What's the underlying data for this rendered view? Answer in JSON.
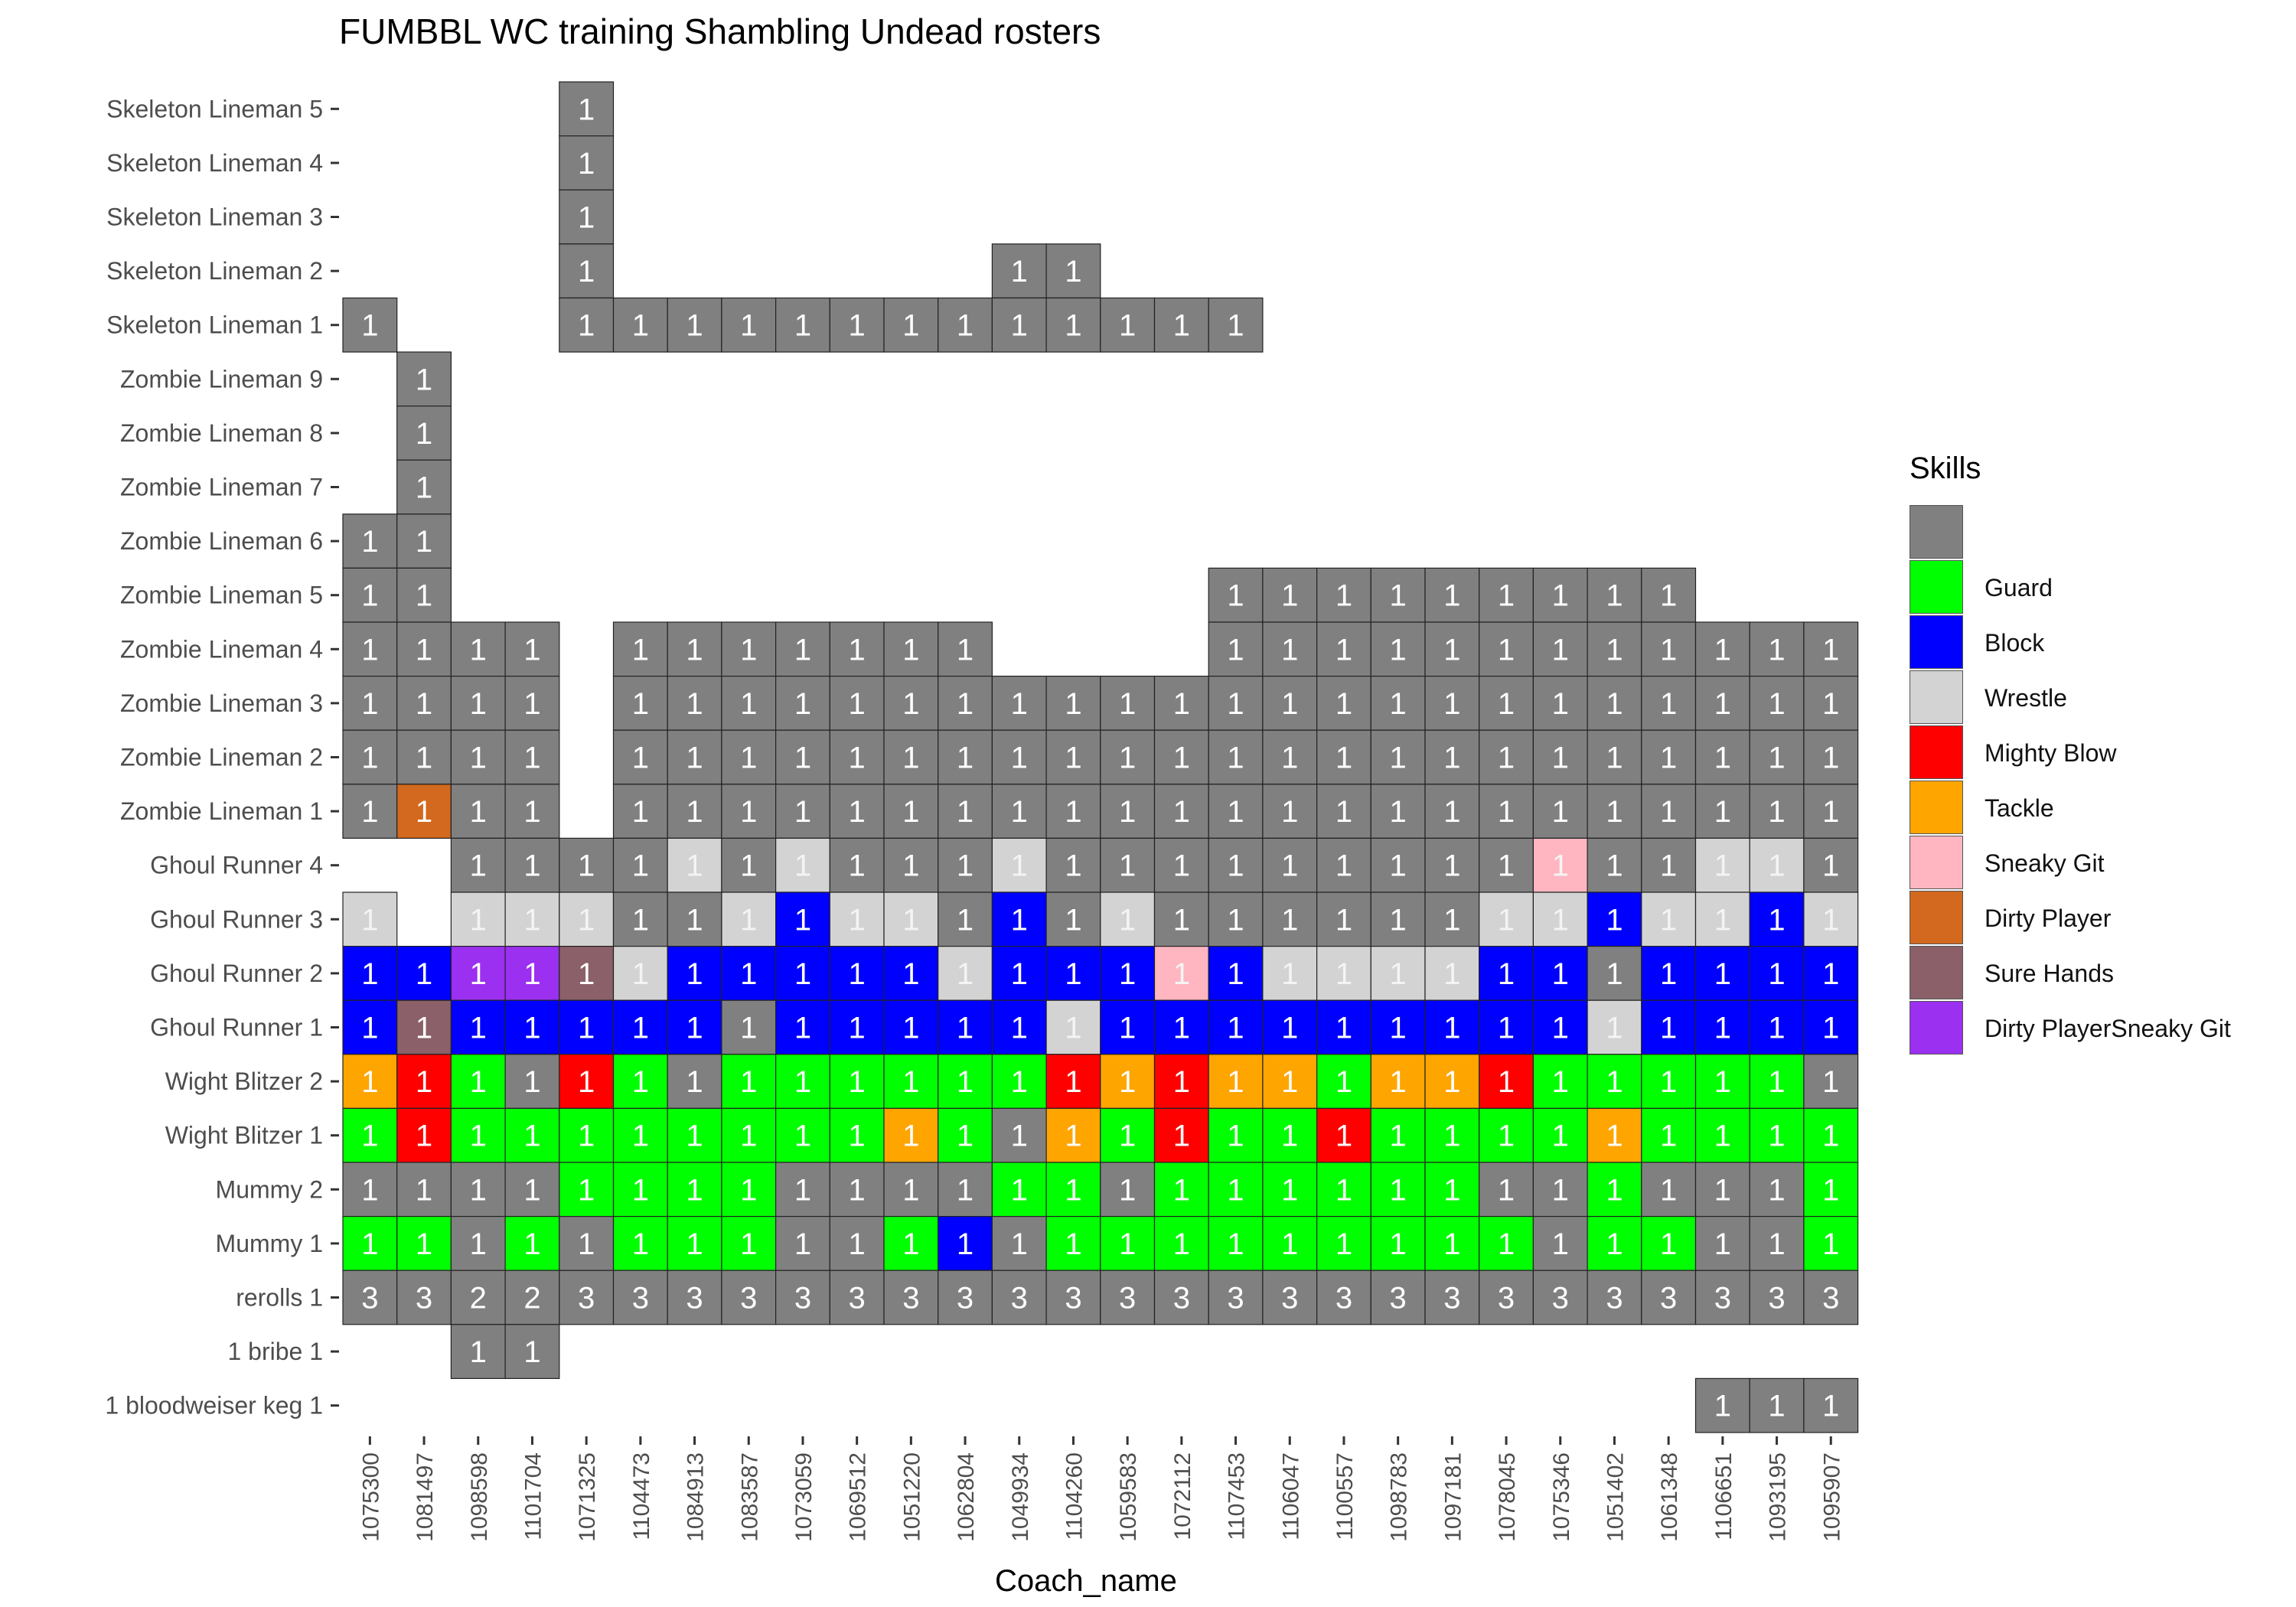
{
  "chart_data": {
    "type": "heatmap",
    "title": "FUMBBL WC training Shambling Undead rosters",
    "xlabel": "Coach_name",
    "ylabel": "",
    "legend_title": "Skills",
    "legend_position": "right",
    "grid": false,
    "x_categories": [
      "1075300",
      "1081497",
      "1098598",
      "1101704",
      "1071325",
      "1104473",
      "1084913",
      "1083587",
      "1073059",
      "1069512",
      "1051220",
      "1062804",
      "1049934",
      "1104260",
      "1059583",
      "1072112",
      "1107453",
      "1106047",
      "1100557",
      "1098783",
      "1097181",
      "1078045",
      "1075346",
      "1051402",
      "1061348",
      "1106651",
      "1093195",
      "1095907"
    ],
    "y_categories": [
      "Skeleton Lineman 5",
      "Skeleton Lineman 4",
      "Skeleton Lineman 3",
      "Skeleton Lineman 2",
      "Skeleton Lineman 1",
      "Zombie Lineman 9",
      "Zombie Lineman 8",
      "Zombie Lineman 7",
      "Zombie Lineman 6",
      "Zombie Lineman 5",
      "Zombie Lineman 4",
      "Zombie Lineman 3",
      "Zombie Lineman 2",
      "Zombie Lineman 1",
      "Ghoul Runner 4",
      "Ghoul Runner 3",
      "Ghoul Runner 2",
      "Ghoul Runner 1",
      "Wight Blitzer 2",
      "Wight Blitzer 1",
      "Mummy 2",
      "Mummy 1",
      "rerolls 1",
      "1 bribe 1",
      "1 bloodweiser keg 1"
    ],
    "legend": [
      {
        "code": "n",
        "name": "",
        "color": "#808080"
      },
      {
        "code": "G",
        "name": "Guard",
        "color": "#00FF00"
      },
      {
        "code": "B",
        "name": "Block",
        "color": "#0000FF"
      },
      {
        "code": "W",
        "name": "Wrestle",
        "color": "#D3D3D3"
      },
      {
        "code": "M",
        "name": "Mighty Blow",
        "color": "#FF0000"
      },
      {
        "code": "T",
        "name": "Tackle",
        "color": "#FFA500"
      },
      {
        "code": "S",
        "name": "Sneaky Git",
        "color": "#FFB6C1"
      },
      {
        "code": "D",
        "name": "Dirty Player",
        "color": "#D2691E"
      },
      {
        "code": "H",
        "name": "Sure Hands",
        "color": "#8B6068"
      },
      {
        "code": "P",
        "name": "Dirty PlayerSneaky Git",
        "color": "#9B30F0"
      }
    ],
    "cell_note": "rows use one char per coach column: '.' = empty, otherwise skill code; value shown is 1 unless row is rerolls",
    "rows": [
      "....n.......................",
      "....n.......................",
      "....n.......................",
      "....n.......nn..............",
      "n...nnnnnnnnnnnnn...........",
      ".n..........................",
      ".n..........................",
      ".n..........................",
      "nn..........................",
      "nn..............nnnnnnnnn...",
      "nnnn.nnnnnnn....nnnnnnnnnnnn",
      "nnnn.nnnnnnnnnnnnnnnnnnnnnnn",
      "nnnn.nnnnnnnnnnnnnnnnnnnnnnn",
      "nDnn.nnnnnnnnnnnnnnnnnnnnnnn",
      "..nnnnWnWnnnWnnnnnnnnnSnnWWn",
      "W.WWWnnWBWWnBnWnnnnnnWWBWWBW",
      "BBPPHWBBBBBWBBBSBWWWWBBnBBBB",
      "BHBBBBBnBBBBBWBBBBBBBBBWBBBB",
      "TMGnMGnGGGGGGMTMTTGTTMGGGGGn",
      "GMGGGGGGGGTGnTGMGGMGGGGTGGGG",
      "nnnnGGGGnnnnGGnGGGGGGnnGnnnG",
      "GGnGnGGGnnGBnGGGGGGGGGnGGnnG",
      "nnnnnnnnnnnnnnnnnnnnnnnnnnnn",
      "..nn........................",
      ".........................nnn"
    ],
    "reroll_values": [
      3,
      3,
      2,
      2,
      3,
      3,
      3,
      3,
      3,
      3,
      3,
      3,
      3,
      3,
      3,
      3,
      3,
      3,
      3,
      3,
      3,
      3,
      3,
      3,
      3,
      3,
      3,
      3
    ],
    "default_value": 1
  }
}
